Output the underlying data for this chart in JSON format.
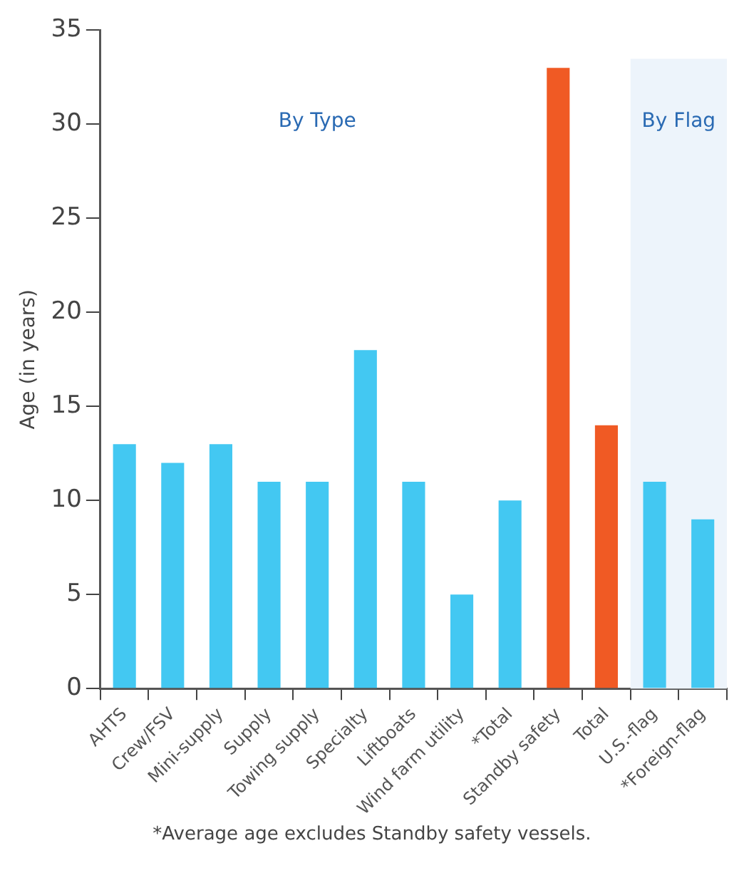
{
  "chart_data": {
    "type": "bar",
    "ylabel": "Age (in years)",
    "categories": [
      "AHTS",
      "Crew/FSV",
      "Mini-supply",
      "Supply",
      "Towing supply",
      "Specialty",
      "Liftboats",
      "Wind farm utility",
      "*Total",
      "Standby safety",
      "Total",
      "U.S.-flag",
      "*Foreign-flag"
    ],
    "values": [
      13,
      12,
      13,
      11,
      11,
      18,
      11,
      5,
      10,
      33,
      14,
      11,
      9
    ],
    "colors": [
      "#43c8f2",
      "#43c8f2",
      "#43c8f2",
      "#43c8f2",
      "#43c8f2",
      "#43c8f2",
      "#43c8f2",
      "#43c8f2",
      "#43c8f2",
      "#f05a24",
      "#f05a24",
      "#43c8f2",
      "#43c8f2"
    ],
    "ylim": [
      0,
      35
    ],
    "yticks": [
      0,
      5,
      10,
      15,
      20,
      25,
      30,
      35
    ],
    "bands": [
      {
        "axis": "x",
        "from": "U.S.-flag",
        "to": "*Foreign-flag",
        "label": "By Flag",
        "color": "#edf4fb"
      }
    ],
    "annotations": [
      "By Type",
      "*Average age excludes Standby safety vessels."
    ],
    "grid": false,
    "legend": false
  }
}
